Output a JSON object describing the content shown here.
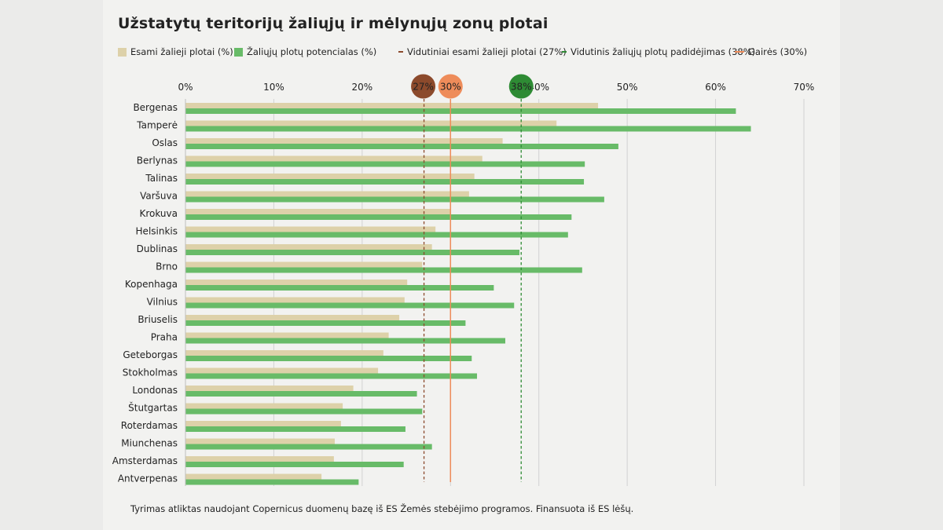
{
  "title": "Užstatytų teritorijų žaliųjų ir mėlynųjų zonų plotai",
  "legend": {
    "existing": "Esami žalieji plotai (%)",
    "potential": "Žaliųjų plotų potencialas (%)",
    "avg_existing": "Vidutiniai esami žalieji plotai (27%)",
    "avg_increase": "Vidutinis žaliųjų plotų padidėjimas (38%)",
    "guideline": "Gairės (30%)"
  },
  "footer": "Tyrimas atliktas naudojant Copernicus duomenų bazę iš ES Žemės stebėjimo programos. Finansuota iš ES lėšų.",
  "colors": {
    "existing": "#ddd1a9",
    "potential": "#68bb68",
    "avg_existing": "#8c4a2c",
    "guideline": "#ee8c5a",
    "avg_increase": "#2e8b34",
    "grid": "#d2d2d2"
  },
  "chart_data": {
    "type": "bar",
    "orientation": "horizontal",
    "xlim": [
      0,
      70
    ],
    "ticks": [
      0,
      10,
      20,
      30,
      40,
      50,
      60,
      70
    ],
    "tick_labels": [
      "0%",
      "10%",
      "20%",
      "30%",
      "40%",
      "50%",
      "60%",
      "70%"
    ],
    "categories": [
      "Bergenas",
      "Tamperė",
      "Oslas",
      "Berlynas",
      "Talinas",
      "Varšuva",
      "Krokuva",
      "Helsinkis",
      "Dublinas",
      "Brno",
      "Kopenhaga",
      "Vilnius",
      "Briuselis",
      "Praha",
      "Geteborgas",
      "Stokholmas",
      "Londonas",
      "Štutgartas",
      "Roterdamas",
      "Miunchenas",
      "Amsterdamas",
      "Antverpenas"
    ],
    "series": [
      {
        "name": "Esami žalieji plotai (%)",
        "values": [
          46.7,
          42.0,
          35.9,
          33.6,
          32.7,
          32.1,
          30.0,
          28.3,
          27.9,
          26.8,
          25.1,
          24.8,
          24.2,
          23.0,
          22.4,
          21.8,
          19.0,
          17.8,
          17.6,
          16.9,
          16.8,
          15.4
        ]
      },
      {
        "name": "Žaliųjų plotų potencialas (%)",
        "values": [
          62.3,
          64.0,
          49.0,
          45.2,
          45.1,
          47.4,
          43.7,
          43.3,
          37.8,
          44.9,
          34.9,
          37.2,
          31.7,
          36.2,
          32.4,
          33.0,
          26.2,
          26.8,
          24.9,
          27.9,
          24.7,
          19.6
        ]
      }
    ],
    "reference_lines": [
      {
        "name": "Vidutiniai esami žalieji plotai (27%)",
        "value": 27,
        "label": "27%",
        "style": "dashed",
        "color_key": "avg_existing"
      },
      {
        "name": "Gairės (30%)",
        "value": 30,
        "label": "30%",
        "style": "solid",
        "color_key": "guideline"
      },
      {
        "name": "Vidutinis žaliųjų plotų padidėjimas (38%)",
        "value": 38,
        "label": "38%",
        "style": "dashed",
        "color_key": "avg_increase"
      }
    ],
    "grid": true,
    "legend_position": "top"
  }
}
